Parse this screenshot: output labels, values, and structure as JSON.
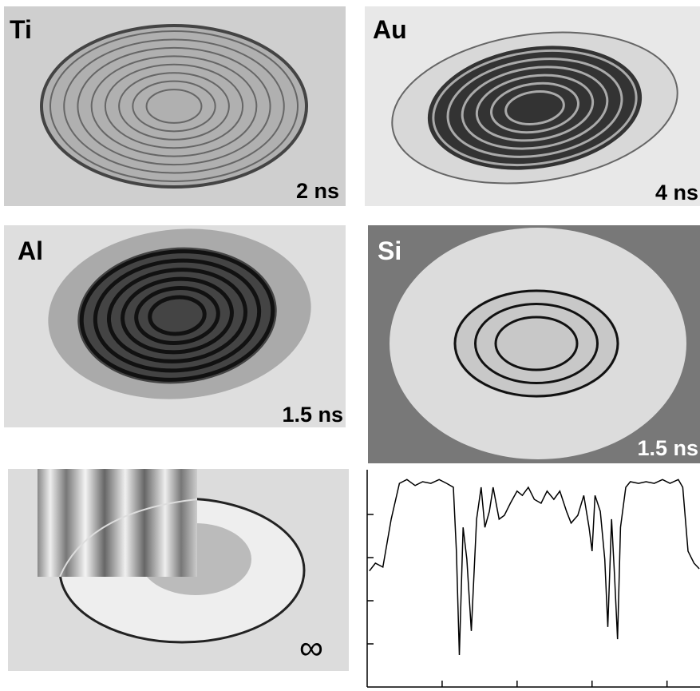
{
  "panels": [
    {
      "label": "Ti",
      "time": "2 ns"
    },
    {
      "label": "Au",
      "time": "4 ns"
    },
    {
      "label": "Al",
      "time": "1.5 ns"
    },
    {
      "label": "Si",
      "time": "1.5 ns"
    },
    {
      "time": "∞"
    }
  ],
  "chart_data": {
    "type": "line",
    "x": [
      0.03,
      0.11,
      0.21,
      0.32,
      0.43,
      0.53,
      0.64,
      0.74,
      0.85,
      0.96,
      1.06,
      1.15,
      1.19,
      1.23,
      1.28,
      1.33,
      1.39,
      1.46,
      1.52,
      1.57,
      1.63,
      1.68,
      1.76,
      1.83,
      1.91,
      2.0,
      2.07,
      2.15,
      2.23,
      2.32,
      2.4,
      2.49,
      2.57,
      2.66,
      2.72,
      2.81,
      2.89,
      2.96,
      3.0,
      3.04,
      3.11,
      3.17,
      3.21,
      3.26,
      3.3,
      3.34,
      3.38,
      3.45,
      3.51,
      3.62,
      3.72,
      3.83,
      3.94,
      4.04,
      4.15,
      4.21,
      4.28,
      4.36,
      4.43
    ],
    "series": [
      {
        "color": "#000000",
        "values": [
          2.69,
          2.87,
          2.78,
          3.89,
          4.72,
          4.81,
          4.67,
          4.76,
          4.72,
          4.81,
          4.72,
          4.63,
          3.15,
          0.74,
          3.7,
          2.96,
          1.3,
          3.89,
          4.63,
          3.7,
          4.07,
          4.63,
          3.89,
          3.98,
          4.26,
          4.54,
          4.44,
          4.63,
          4.35,
          4.26,
          4.54,
          4.35,
          4.54,
          4.07,
          3.8,
          3.98,
          4.44,
          3.7,
          3.15,
          4.44,
          4.07,
          2.96,
          1.39,
          3.89,
          2.59,
          1.11,
          3.7,
          4.63,
          4.76,
          4.72,
          4.76,
          4.72,
          4.81,
          4.72,
          4.81,
          4.63,
          3.15,
          2.87,
          2.74
        ]
      }
    ],
    "xlim": [
      0,
      4.44
    ],
    "ylim": [
      0,
      5
    ],
    "xticks": [
      1,
      2,
      3,
      4
    ],
    "yticks": [
      1,
      2,
      3,
      4
    ]
  }
}
